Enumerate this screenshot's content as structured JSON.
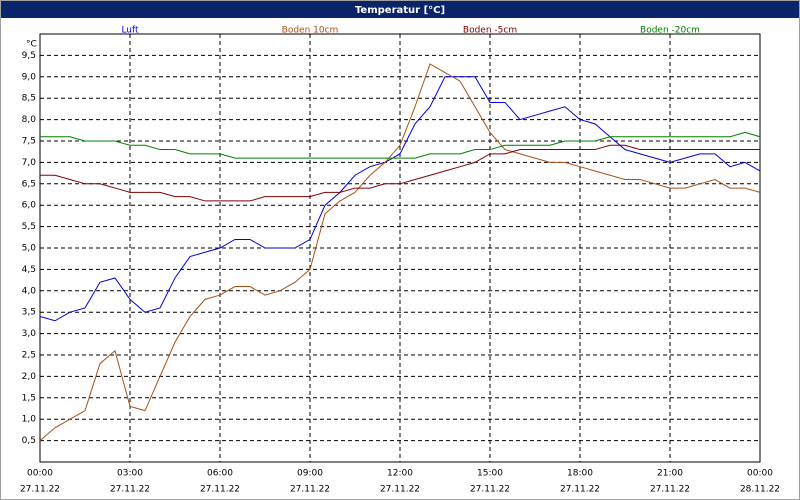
{
  "chart_data": {
    "type": "line",
    "title": "Temperatur [°C]",
    "y_label": "°C",
    "x": [
      0,
      0.5,
      1,
      1.5,
      2,
      2.5,
      3,
      3.5,
      4,
      4.5,
      5,
      5.5,
      6,
      6.5,
      7,
      7.5,
      8,
      8.5,
      9,
      9.5,
      10,
      10.5,
      11,
      11.5,
      12,
      12.5,
      13,
      13.5,
      14,
      14.5,
      15,
      15.5,
      16,
      16.5,
      17,
      17.5,
      18,
      18.5,
      19,
      19.5,
      20,
      20.5,
      21,
      21.5,
      22,
      22.5,
      23,
      23.5,
      24
    ],
    "series": [
      {
        "name": "Luft",
        "color": "#0000e0",
        "values": [
          3.4,
          3.3,
          3.5,
          3.6,
          4.2,
          4.3,
          3.8,
          3.5,
          3.6,
          4.3,
          4.8,
          4.9,
          5.0,
          5.2,
          5.2,
          5.0,
          5.0,
          5.0,
          5.2,
          6.0,
          6.3,
          6.7,
          6.9,
          7.0,
          7.2,
          7.9,
          8.3,
          9.0,
          9.0,
          9.0,
          8.4,
          8.4,
          8.0,
          8.1,
          8.2,
          8.3,
          8.0,
          7.9,
          7.6,
          7.3,
          7.2,
          7.1,
          7.0,
          7.1,
          7.2,
          7.2,
          6.9,
          7.0,
          6.8
        ]
      },
      {
        "name": "Boden 10cm",
        "color": "#a85018",
        "values": [
          0.5,
          0.8,
          1.0,
          1.2,
          2.3,
          2.6,
          1.3,
          1.2,
          2.0,
          2.8,
          3.4,
          3.8,
          3.9,
          4.1,
          4.1,
          3.9,
          4.0,
          4.2,
          4.5,
          5.8,
          6.1,
          6.3,
          6.7,
          7.0,
          7.4,
          8.3,
          9.3,
          9.1,
          8.9,
          8.3,
          7.7,
          7.3,
          7.2,
          7.1,
          7.0,
          7.0,
          6.9,
          6.8,
          6.7,
          6.6,
          6.6,
          6.5,
          6.4,
          6.4,
          6.5,
          6.6,
          6.4,
          6.4,
          6.3
        ]
      },
      {
        "name": "Boden -5cm",
        "color": "#800000",
        "values": [
          6.7,
          6.7,
          6.6,
          6.5,
          6.5,
          6.4,
          6.3,
          6.3,
          6.3,
          6.2,
          6.2,
          6.1,
          6.1,
          6.1,
          6.1,
          6.2,
          6.2,
          6.2,
          6.2,
          6.3,
          6.3,
          6.4,
          6.4,
          6.5,
          6.5,
          6.6,
          6.7,
          6.8,
          6.9,
          7.0,
          7.2,
          7.2,
          7.3,
          7.3,
          7.3,
          7.3,
          7.3,
          7.3,
          7.4,
          7.4,
          7.3,
          7.3,
          7.3,
          7.3,
          7.3,
          7.3,
          7.3,
          7.3,
          7.3
        ]
      },
      {
        "name": "Boden -20cm",
        "color": "#008000",
        "values": [
          7.6,
          7.6,
          7.6,
          7.5,
          7.5,
          7.5,
          7.4,
          7.4,
          7.3,
          7.3,
          7.2,
          7.2,
          7.2,
          7.1,
          7.1,
          7.1,
          7.1,
          7.1,
          7.1,
          7.1,
          7.1,
          7.1,
          7.1,
          7.1,
          7.1,
          7.1,
          7.2,
          7.2,
          7.2,
          7.3,
          7.3,
          7.4,
          7.4,
          7.4,
          7.4,
          7.5,
          7.5,
          7.5,
          7.6,
          7.6,
          7.6,
          7.6,
          7.6,
          7.6,
          7.6,
          7.6,
          7.6,
          7.7,
          7.6
        ]
      }
    ],
    "xlim": [
      0,
      24
    ],
    "xticks": [
      {
        "value": 0,
        "label": "00:00"
      },
      {
        "value": 3,
        "label": "03:00"
      },
      {
        "value": 6,
        "label": "06:00"
      },
      {
        "value": 9,
        "label": "09:00"
      },
      {
        "value": 12,
        "label": "12:00"
      },
      {
        "value": 15,
        "label": "15:00"
      },
      {
        "value": 18,
        "label": "18:00"
      },
      {
        "value": 21,
        "label": "21:00"
      },
      {
        "value": 24,
        "label": "00:00"
      }
    ],
    "xtick_dates": [
      "27.11.22",
      "27.11.22",
      "27.11.22",
      "27.11.22",
      "27.11.22",
      "27.11.22",
      "27.11.22",
      "27.11.22",
      "28.11.22"
    ],
    "ylim": [
      0,
      10
    ],
    "yticks": [
      {
        "value": 0.5,
        "label": "0,5"
      },
      {
        "value": 1,
        "label": "1,0"
      },
      {
        "value": 1.5,
        "label": "1,5"
      },
      {
        "value": 2,
        "label": "2,0"
      },
      {
        "value": 2.5,
        "label": "2,5"
      },
      {
        "value": 3,
        "label": "3,0"
      },
      {
        "value": 3.5,
        "label": "3,5"
      },
      {
        "value": 4,
        "label": "4,0"
      },
      {
        "value": 4.5,
        "label": "4,5"
      },
      {
        "value": 5,
        "label": "5,0"
      },
      {
        "value": 5.5,
        "label": "5,5"
      },
      {
        "value": 6,
        "label": "6,0"
      },
      {
        "value": 6.5,
        "label": "6,5"
      },
      {
        "value": 7,
        "label": "7,0"
      },
      {
        "value": 7.5,
        "label": "7,5"
      },
      {
        "value": 8,
        "label": "8,0"
      },
      {
        "value": 8.5,
        "label": "8,5"
      },
      {
        "value": 9,
        "label": "9,0"
      },
      {
        "value": 9.5,
        "label": "9,5"
      }
    ],
    "grid": true
  }
}
